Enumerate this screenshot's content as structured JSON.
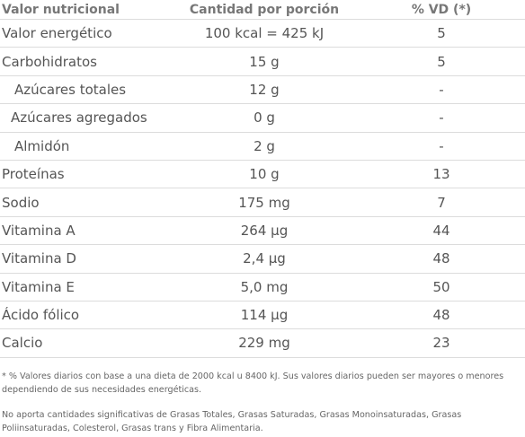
{
  "table": {
    "headers": {
      "name": "Valor nutricional",
      "amount": "Cantidad por porción",
      "dv": "% VD (*)"
    },
    "rows": [
      {
        "name": "Valor energético",
        "amount": "100 kcal = 425 kJ",
        "dv": "5"
      },
      {
        "name": "Carbohidratos",
        "amount": "15 g",
        "dv": "5"
      },
      {
        "name": "Azúcares totales",
        "amount": "12 g",
        "dv": "-"
      },
      {
        "name": "Azúcares agregados",
        "amount": "0 g",
        "dv": "-"
      },
      {
        "name": "Almidón",
        "amount": "2 g",
        "dv": "-"
      },
      {
        "name": "Proteínas",
        "amount": "10 g",
        "dv": "13"
      },
      {
        "name": "Sodio",
        "amount": "175 mg",
        "dv": "7"
      },
      {
        "name": "Vitamina A",
        "amount": "264 µg",
        "dv": "44"
      },
      {
        "name": "Vitamina D",
        "amount": "2,4 µg",
        "dv": "48"
      },
      {
        "name": "Vitamina E",
        "amount": "5,0 mg",
        "dv": "50"
      },
      {
        "name": "Ácido fólico",
        "amount": "114 µg",
        "dv": "48"
      },
      {
        "name": "Calcio",
        "amount": "229 mg",
        "dv": "23"
      }
    ]
  },
  "footnotes": {
    "daily_values": "* % Valores diarios con base a una dieta de 2000 kcal u 8400 kJ. Sus valores diarios pueden ser mayores o menores dependiendo de sus necesidades energéticas.",
    "no_significant": "No aporta cantidades significativas de Grasas Totales, Grasas Saturadas, Grasas Monoinsaturadas, Grasas Poliinsaturadas, Colesterol, Grasas trans y Fibra Alimentaria."
  }
}
